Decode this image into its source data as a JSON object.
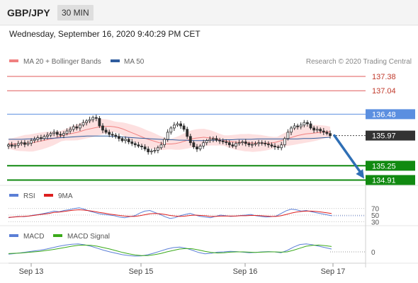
{
  "header": {
    "symbol": "GBP/JPY",
    "timeframe": "30 MIN",
    "datetime": "Wednesday, September 16, 2020 9:40:29 PM CET"
  },
  "legend": {
    "ma20": "MA 20 + Bollinger Bands",
    "ma50": "MA 50",
    "credit": "Research © 2020 Trading Central"
  },
  "colors": {
    "ma20": "#f08080",
    "ma50": "#2f5c9e",
    "band_fill": "#fde0e0",
    "resistance": "#e05a5a",
    "pivot": "#5b8fe0",
    "support": "#118a11",
    "last_price": "#333333",
    "arrow": "#2f6fb5",
    "rsi": "#5b7fd6",
    "rsi_ma": "#dd1f1f",
    "macd": "#5b7fd6",
    "macd_signal": "#3aaa1a",
    "candle": "#2d2d2d"
  },
  "chart_data": [
    {
      "type": "candlestick",
      "title": "GBP/JPY 30 MIN",
      "x_ticks": [
        "Sep 13",
        "Sep 15",
        "Sep 16",
        "Sep 17"
      ],
      "ylim": [
        134.85,
        137.6
      ],
      "levels": [
        {
          "value": 137.38,
          "label": "137.38",
          "kind": "resistance"
        },
        {
          "value": 137.04,
          "label": "137.04",
          "kind": "resistance"
        },
        {
          "value": 136.48,
          "label": "136.48",
          "kind": "pivot"
        },
        {
          "value": 135.97,
          "label": "135.97",
          "kind": "last"
        },
        {
          "value": 135.25,
          "label": "135.25",
          "kind": "support"
        },
        {
          "value": 134.91,
          "label": "134.91",
          "kind": "support"
        }
      ],
      "close": [
        135.75,
        135.72,
        135.74,
        135.78,
        135.8,
        135.76,
        135.79,
        135.85,
        135.88,
        135.92,
        135.9,
        135.95,
        135.98,
        136.02,
        136.05,
        136.0,
        135.98,
        136.02,
        136.08,
        136.12,
        136.18,
        136.15,
        136.22,
        136.28,
        136.32,
        136.35,
        136.4,
        136.38,
        136.2,
        136.1,
        136.05,
        136.0,
        135.98,
        135.95,
        135.9,
        135.85,
        135.88,
        135.82,
        135.78,
        135.75,
        135.72,
        135.7,
        135.65,
        135.58,
        135.6,
        135.62,
        135.68,
        135.75,
        135.88,
        136.05,
        136.15,
        136.22,
        136.25,
        136.2,
        136.12,
        135.95,
        135.8,
        135.7,
        135.65,
        135.72,
        135.8,
        135.85,
        135.88,
        135.9,
        135.86,
        135.84,
        135.82,
        135.8,
        135.75,
        135.72,
        135.78,
        135.8,
        135.82,
        135.78,
        135.75,
        135.76,
        135.78,
        135.8,
        135.79,
        135.77,
        135.75,
        135.72,
        135.7,
        135.68,
        135.75,
        135.9,
        136.05,
        136.15,
        136.2,
        136.18,
        136.22,
        136.28,
        136.25,
        136.15,
        136.1,
        136.12,
        136.08,
        136.05,
        136.02,
        135.97
      ],
      "ma20": [
        135.78,
        135.77,
        135.77,
        135.78,
        135.79,
        135.79,
        135.8,
        135.82,
        135.84,
        135.86,
        135.88,
        135.9,
        135.93,
        135.96,
        135.99,
        136.01,
        136.03,
        136.05,
        136.08,
        136.11,
        136.13,
        136.15,
        136.17,
        136.18,
        136.19,
        136.19,
        136.18,
        136.16,
        136.13,
        136.09,
        136.05,
        136.01,
        135.97,
        135.93,
        135.89,
        135.86,
        135.83,
        135.8,
        135.78,
        135.77,
        135.77,
        135.78,
        135.8,
        135.83,
        135.86,
        135.89,
        135.91,
        135.92,
        135.93,
        135.92,
        135.91,
        135.89,
        135.87,
        135.85,
        135.83,
        135.82,
        135.81,
        135.81,
        135.8,
        135.8,
        135.79,
        135.79,
        135.79,
        135.79,
        135.79,
        135.8,
        135.82,
        135.85,
        135.88,
        135.91,
        135.94,
        135.97,
        135.99,
        136.01,
        136.02,
        136.03,
        136.04,
        136.05,
        136.06,
        136.06
      ],
      "ma50": [
        135.88,
        135.88,
        135.88,
        135.89,
        135.89,
        135.9,
        135.9,
        135.91,
        135.92,
        135.93,
        135.94,
        135.95,
        135.96,
        135.96,
        135.96,
        135.96,
        135.95,
        135.94,
        135.93,
        135.92,
        135.91,
        135.9,
        135.89,
        135.88,
        135.87,
        135.87,
        135.86,
        135.86,
        135.85,
        135.85,
        135.85,
        135.86,
        135.86,
        135.87,
        135.87,
        135.88,
        135.88,
        135.88,
        135.89,
        135.89,
        135.89,
        135.89,
        135.89,
        135.89,
        135.89,
        135.9,
        135.9,
        135.91,
        135.92,
        135.93
      ],
      "forecast_arrow": {
        "from": 135.97,
        "to": 134.91
      }
    },
    {
      "type": "line",
      "legend": [
        "RSI",
        "9MA"
      ],
      "y_ticks": [
        {
          "value": 70,
          "label": "70"
        },
        {
          "value": 50,
          "label": "50"
        },
        {
          "value": 30,
          "label": "30"
        }
      ],
      "ylim": [
        20,
        80
      ],
      "series": [
        {
          "name": "RSI",
          "values": [
            42,
            44,
            46,
            45,
            47,
            50,
            52,
            55,
            58,
            62,
            60,
            64,
            66,
            70,
            72,
            68,
            62,
            58,
            54,
            52,
            50,
            48,
            44,
            42,
            45,
            48,
            56,
            62,
            64,
            58,
            52,
            45,
            40,
            42,
            48,
            52,
            55,
            50,
            46,
            44,
            42,
            46,
            50,
            48,
            46,
            47,
            49,
            50,
            52,
            48,
            46,
            44,
            45,
            47,
            55,
            63,
            68,
            66,
            62,
            64,
            60,
            57,
            54,
            51,
            48
          ]
        },
        {
          "name": "9MA",
          "values": [
            43,
            44,
            45,
            46,
            47,
            49,
            51,
            53,
            55,
            58,
            59,
            61,
            63,
            65,
            66,
            65,
            63,
            61,
            58,
            56,
            53,
            51,
            49,
            47,
            46,
            46,
            48,
            51,
            54,
            55,
            54,
            52,
            49,
            47,
            46,
            47,
            49,
            50,
            49,
            48,
            46,
            46,
            47,
            47,
            47,
            47,
            48,
            48,
            49,
            49,
            48,
            47,
            46,
            46,
            48,
            52,
            56,
            59,
            61,
            62,
            62,
            61,
            59,
            57,
            55
          ]
        }
      ]
    },
    {
      "type": "line",
      "legend": [
        "MACD",
        "MACD Signal"
      ],
      "y_ticks": [
        {
          "value": 0,
          "label": "0"
        }
      ],
      "ylim": [
        -0.4,
        0.4
      ],
      "series": [
        {
          "name": "MACD",
          "values": [
            -0.08,
            -0.06,
            -0.03,
            0.0,
            0.03,
            0.06,
            0.1,
            0.15,
            0.2,
            0.24,
            0.27,
            0.28,
            0.25,
            0.2,
            0.13,
            0.06,
            0.0,
            -0.05,
            -0.1,
            -0.13,
            -0.15,
            -0.14,
            -0.1,
            -0.04,
            0.03,
            0.1,
            0.15,
            0.17,
            0.13,
            0.06,
            -0.02,
            -0.07,
            -0.05,
            -0.01,
            0.0,
            0.02,
            0.01,
            -0.01,
            -0.03,
            -0.02,
            0.0,
            0.01,
            0.0,
            -0.03,
            0.05,
            0.17,
            0.26,
            0.28,
            0.25,
            0.2,
            0.15,
            0.1
          ]
        },
        {
          "name": "MACD Signal",
          "values": [
            -0.06,
            -0.05,
            -0.04,
            -0.02,
            0.0,
            0.02,
            0.05,
            0.08,
            0.12,
            0.16,
            0.2,
            0.23,
            0.24,
            0.23,
            0.2,
            0.15,
            0.1,
            0.04,
            -0.02,
            -0.07,
            -0.11,
            -0.13,
            -0.13,
            -0.1,
            -0.06,
            0.0,
            0.05,
            0.1,
            0.12,
            0.11,
            0.07,
            0.02,
            -0.02,
            -0.04,
            -0.03,
            -0.01,
            0.0,
            0.0,
            -0.01,
            -0.02,
            -0.01,
            0.0,
            0.0,
            -0.01,
            0.0,
            0.06,
            0.13,
            0.2,
            0.23,
            0.24,
            0.22,
            0.19
          ]
        }
      ]
    }
  ]
}
